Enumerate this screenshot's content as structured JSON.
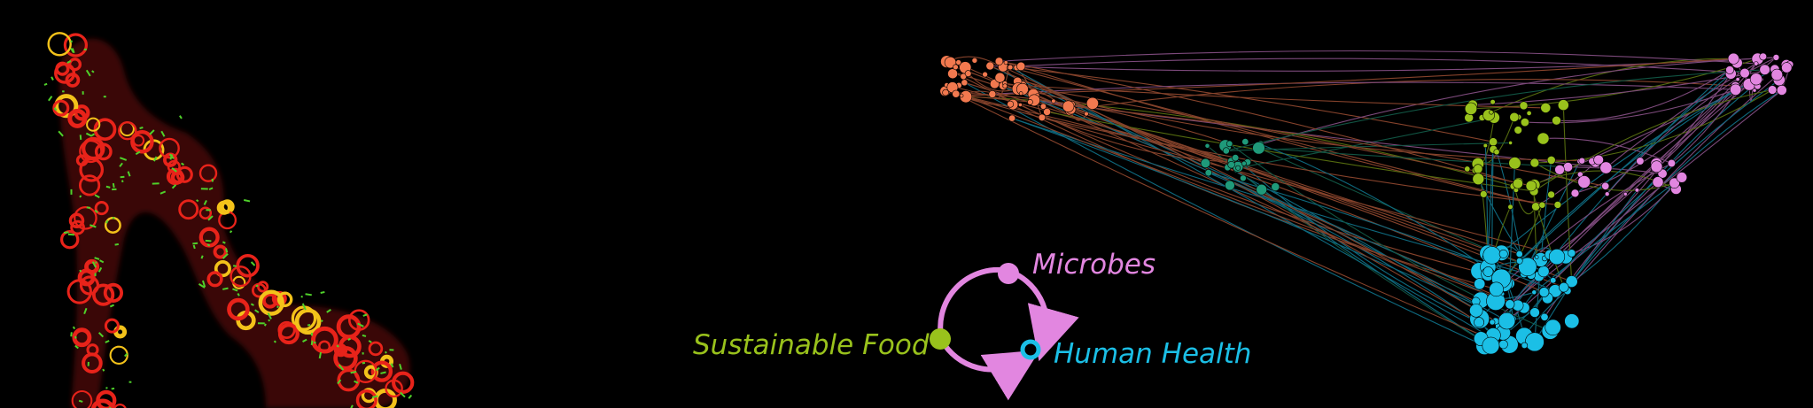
{
  "labels": {
    "microbes": "Microbes",
    "sustainable_food": "Sustainable Food",
    "human_health": "Human Health"
  },
  "colors": {
    "background": "#000000",
    "microbes": "#e286e0",
    "sustainable_food": "#99c21c",
    "human_health": "#1bbfe6",
    "network_orange": "#f2794f",
    "network_teal": "#1f9a7a",
    "micrograph_red": "#e8231a",
    "micrograph_green": "#4fd12a"
  }
}
